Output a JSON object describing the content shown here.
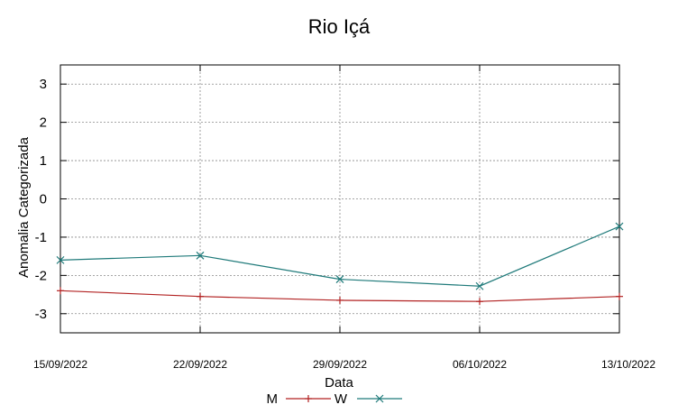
{
  "chart_data": {
    "type": "line",
    "title": "Rio Içá",
    "xlabel": "Data",
    "ylabel": "Anomalia Categorizada",
    "categories": [
      "15/09/2022",
      "22/09/2022",
      "29/09/2022",
      "06/10/2022",
      "13/10/2022"
    ],
    "y_ticks": [
      "3",
      "2",
      "1",
      "0",
      "-1",
      "-2",
      "-3"
    ],
    "ylim": [
      -3.5,
      3.5
    ],
    "grid": true,
    "legend_position": "bottom",
    "series": [
      {
        "name": "M",
        "color": "#b22222",
        "marker": "plus",
        "values": [
          -2.4,
          -2.55,
          -2.65,
          -2.68,
          -2.55
        ]
      },
      {
        "name": "W",
        "color": "#1f7a7a",
        "marker": "cross",
        "values": [
          -1.6,
          -1.48,
          -2.1,
          -2.28,
          -0.72
        ]
      }
    ]
  }
}
